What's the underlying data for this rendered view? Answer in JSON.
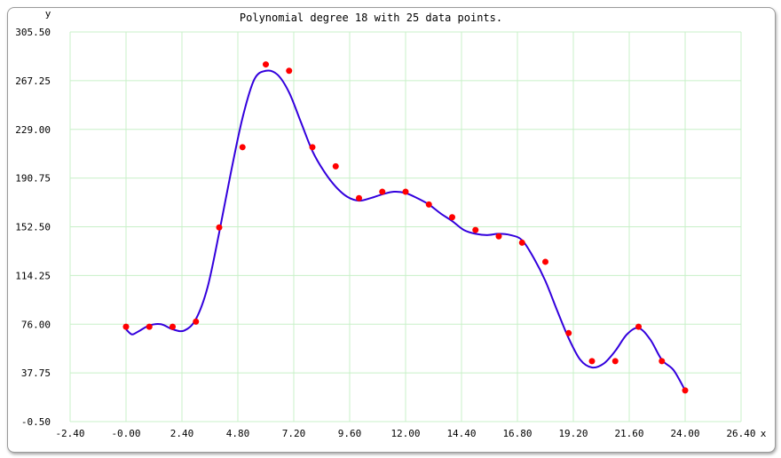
{
  "chart_data": {
    "type": "scatter",
    "title": "Polynomial degree 18 with 25 data points.",
    "xlabel": "x",
    "ylabel": "y",
    "xlim": [
      -2.4,
      26.4
    ],
    "ylim": [
      -0.5,
      305.5
    ],
    "x_ticks": [
      "-2.40",
      "-0.00",
      "2.40",
      "4.80",
      "7.20",
      "9.60",
      "12.00",
      "14.40",
      "16.80",
      "19.20",
      "21.60",
      "24.00",
      "26.40"
    ],
    "y_ticks": [
      "305.50",
      "267.25",
      "229.00",
      "190.75",
      "152.50",
      "114.25",
      "76.00",
      "37.75",
      "-0.50"
    ],
    "grid": true,
    "colors": {
      "points": "#ff0000",
      "curve": "#3300dd",
      "grid": "#c8f0c8"
    },
    "series": [
      {
        "type": "scatter",
        "x": [
          0,
          1,
          2,
          3,
          4,
          5,
          6,
          7,
          8,
          9,
          10,
          11,
          12,
          13,
          14,
          15,
          16,
          17,
          18,
          19,
          20,
          21,
          22,
          23,
          24
        ],
        "y": [
          74,
          74,
          74,
          78,
          152,
          215,
          280,
          275,
          215,
          200,
          175,
          180,
          180,
          170,
          160,
          150,
          145,
          140,
          125,
          69,
          47,
          47,
          74,
          47,
          24
        ]
      },
      {
        "type": "line",
        "x": [
          0,
          0.25,
          0.5,
          1,
          1.5,
          2,
          2.5,
          3,
          3.5,
          4,
          4.5,
          5,
          5.5,
          6,
          6.5,
          7,
          7.5,
          8,
          8.5,
          9,
          9.5,
          10,
          10.5,
          11,
          11.5,
          12,
          12.5,
          13,
          13.5,
          14,
          14.5,
          15,
          15.5,
          16,
          16.5,
          17,
          17.5,
          18,
          18.5,
          19,
          19.5,
          20,
          20.5,
          21,
          21.5,
          22,
          22.5,
          23,
          23.5,
          24
        ],
        "y": [
          72,
          68,
          70,
          75,
          76,
          72,
          71,
          80,
          105,
          148,
          195,
          238,
          268,
          275,
          272,
          258,
          235,
          212,
          196,
          184,
          176,
          173,
          175,
          178,
          180,
          179,
          175,
          170,
          163,
          157,
          150,
          147,
          146,
          147,
          146,
          142,
          128,
          110,
          87,
          65,
          48,
          42,
          45,
          55,
          68,
          73,
          64,
          48,
          40,
          24
        ]
      }
    ]
  }
}
